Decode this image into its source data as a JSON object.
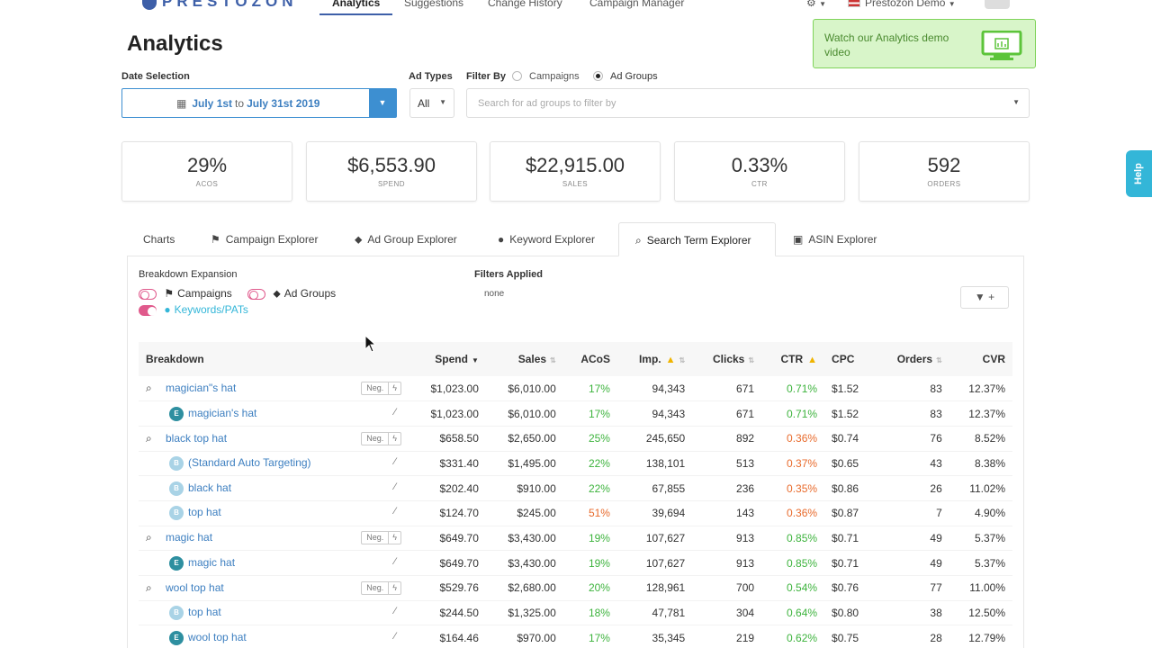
{
  "nav": {
    "brand": "PRESTOZON",
    "links": [
      "Analytics",
      "Suggestions",
      "Change History",
      "Campaign Manager"
    ],
    "active": "Analytics",
    "settings_icon": "gear-icon",
    "account": "Prestozon Demo"
  },
  "page_title": "Analytics",
  "date": {
    "label": "Date Selection",
    "start": "July 1st",
    "to": "to",
    "end": "July 31st 2019"
  },
  "ad_types": {
    "label": "Ad Types",
    "value": "All"
  },
  "filter_by": {
    "label": "Filter By",
    "options": [
      "Campaigns",
      "Ad Groups"
    ],
    "selected": "Ad Groups",
    "search_placeholder": "Search for ad groups to filter by"
  },
  "video_banner": "Watch our Analytics demo video",
  "help": "Help",
  "stats": [
    {
      "value": "29%",
      "label": "ACOS"
    },
    {
      "value": "$6,553.90",
      "label": "SPEND"
    },
    {
      "value": "$22,915.00",
      "label": "SALES"
    },
    {
      "value": "0.33%",
      "label": "CTR"
    },
    {
      "value": "592",
      "label": "ORDERS"
    }
  ],
  "tabs": [
    "Charts",
    "Campaign Explorer",
    "Ad Group Explorer",
    "Keyword Explorer",
    "Search Term Explorer",
    "ASIN Explorer"
  ],
  "active_tab": "Search Term Explorer",
  "breakdown": {
    "label": "Breakdown Expansion",
    "toggles": [
      "Campaigns",
      "Ad Groups",
      "Keywords/PATs"
    ]
  },
  "filters": {
    "label": "Filters Applied",
    "value": "none"
  },
  "table": {
    "headers": [
      "Breakdown",
      "Spend",
      "Sales",
      "ACoS",
      "Imp.",
      "Clicks",
      "CTR",
      "CPC",
      "Orders",
      "CVR"
    ],
    "neg_label": "Neg.",
    "rows": [
      {
        "level": 0,
        "name": "magician\"s hat",
        "spend": "$1,023.00",
        "sales": "$6,010.00",
        "acos": "17%",
        "acos_c": "green",
        "imp": "94,343",
        "clicks": "671",
        "ctr": "0.71%",
        "ctr_c": "green",
        "cpc": "$1.52",
        "orders": "83",
        "cvr": "12.37%"
      },
      {
        "level": 1,
        "badge": "E",
        "name": "magician's hat",
        "spend": "$1,023.00",
        "sales": "$6,010.00",
        "acos": "17%",
        "acos_c": "green",
        "imp": "94,343",
        "clicks": "671",
        "ctr": "0.71%",
        "ctr_c": "green",
        "cpc": "$1.52",
        "orders": "83",
        "cvr": "12.37%"
      },
      {
        "level": 0,
        "name": "black top hat",
        "spend": "$658.50",
        "sales": "$2,650.00",
        "acos": "25%",
        "acos_c": "green",
        "imp": "245,650",
        "clicks": "892",
        "ctr": "0.36%",
        "ctr_c": "orange",
        "cpc": "$0.74",
        "orders": "76",
        "cvr": "8.52%"
      },
      {
        "level": 1,
        "badge": "B",
        "name": "(Standard Auto Targeting)",
        "spend": "$331.40",
        "sales": "$1,495.00",
        "acos": "22%",
        "acos_c": "green",
        "imp": "138,101",
        "clicks": "513",
        "ctr": "0.37%",
        "ctr_c": "orange",
        "cpc": "$0.65",
        "orders": "43",
        "cvr": "8.38%"
      },
      {
        "level": 1,
        "badge": "B",
        "name": "black hat",
        "spend": "$202.40",
        "sales": "$910.00",
        "acos": "22%",
        "acos_c": "green",
        "imp": "67,855",
        "clicks": "236",
        "ctr": "0.35%",
        "ctr_c": "orange",
        "cpc": "$0.86",
        "orders": "26",
        "cvr": "11.02%"
      },
      {
        "level": 1,
        "badge": "B",
        "name": "top hat",
        "spend": "$124.70",
        "sales": "$245.00",
        "acos": "51%",
        "acos_c": "orange",
        "imp": "39,694",
        "clicks": "143",
        "ctr": "0.36%",
        "ctr_c": "orange",
        "cpc": "$0.87",
        "orders": "7",
        "cvr": "4.90%"
      },
      {
        "level": 0,
        "name": "magic hat",
        "spend": "$649.70",
        "sales": "$3,430.00",
        "acos": "19%",
        "acos_c": "green",
        "imp": "107,627",
        "clicks": "913",
        "ctr": "0.85%",
        "ctr_c": "green",
        "cpc": "$0.71",
        "orders": "49",
        "cvr": "5.37%"
      },
      {
        "level": 1,
        "badge": "E",
        "name": "magic hat",
        "spend": "$649.70",
        "sales": "$3,430.00",
        "acos": "19%",
        "acos_c": "green",
        "imp": "107,627",
        "clicks": "913",
        "ctr": "0.85%",
        "ctr_c": "green",
        "cpc": "$0.71",
        "orders": "49",
        "cvr": "5.37%"
      },
      {
        "level": 0,
        "name": "wool top hat",
        "spend": "$529.76",
        "sales": "$2,680.00",
        "acos": "20%",
        "acos_c": "green",
        "imp": "128,961",
        "clicks": "700",
        "ctr": "0.54%",
        "ctr_c": "green",
        "cpc": "$0.76",
        "orders": "77",
        "cvr": "11.00%"
      },
      {
        "level": 1,
        "badge": "B",
        "name": "top hat",
        "spend": "$244.50",
        "sales": "$1,325.00",
        "acos": "18%",
        "acos_c": "green",
        "imp": "47,781",
        "clicks": "304",
        "ctr": "0.64%",
        "ctr_c": "green",
        "cpc": "$0.80",
        "orders": "38",
        "cvr": "12.50%"
      },
      {
        "level": 1,
        "badge": "E",
        "name": "wool top hat",
        "spend": "$164.46",
        "sales": "$970.00",
        "acos": "17%",
        "acos_c": "green",
        "imp": "35,345",
        "clicks": "219",
        "ctr": "0.62%",
        "ctr_c": "green",
        "cpc": "$0.75",
        "orders": "28",
        "cvr": "12.79%"
      }
    ]
  }
}
